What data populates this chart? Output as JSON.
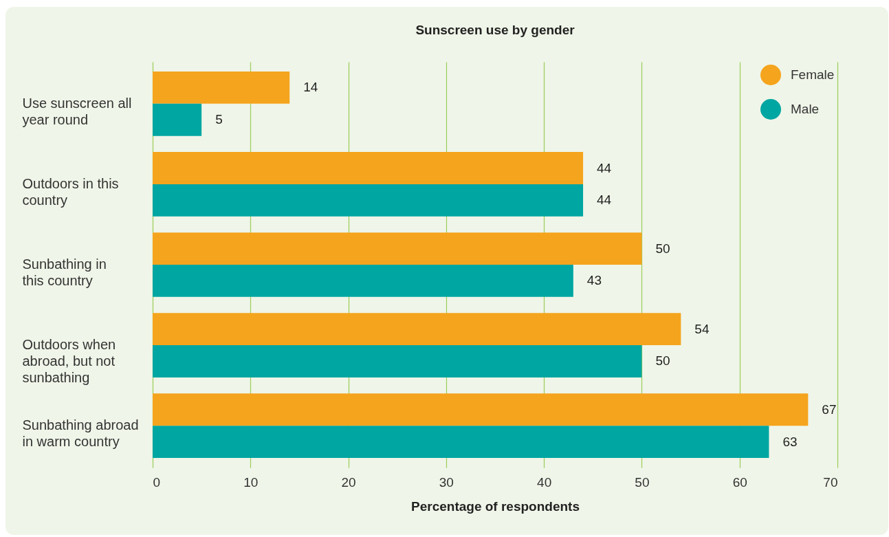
{
  "chart_data": {
    "type": "bar",
    "orientation": "horizontal",
    "title": "Sunscreen use by gender",
    "xlabel": "Percentage of respondents",
    "categories": [
      "Use sunscreen all year round",
      "Outdoors in this country",
      "Sunbathing in this country",
      "Outdoors when abroad, but not sunbathing",
      "Sunbathing abroad in warm country"
    ],
    "series": [
      {
        "name": "Female",
        "color": "#f5a41d",
        "values": [
          14,
          44,
          50,
          54,
          67
        ]
      },
      {
        "name": "Male",
        "color": "#00a6a2",
        "values": [
          5,
          44,
          43,
          50,
          63
        ]
      }
    ],
    "xlim": [
      0,
      70
    ],
    "xticks": [
      0,
      10,
      20,
      30,
      40,
      50,
      60,
      70
    ],
    "grid": "x",
    "legend": "top right",
    "data_labels": true
  }
}
